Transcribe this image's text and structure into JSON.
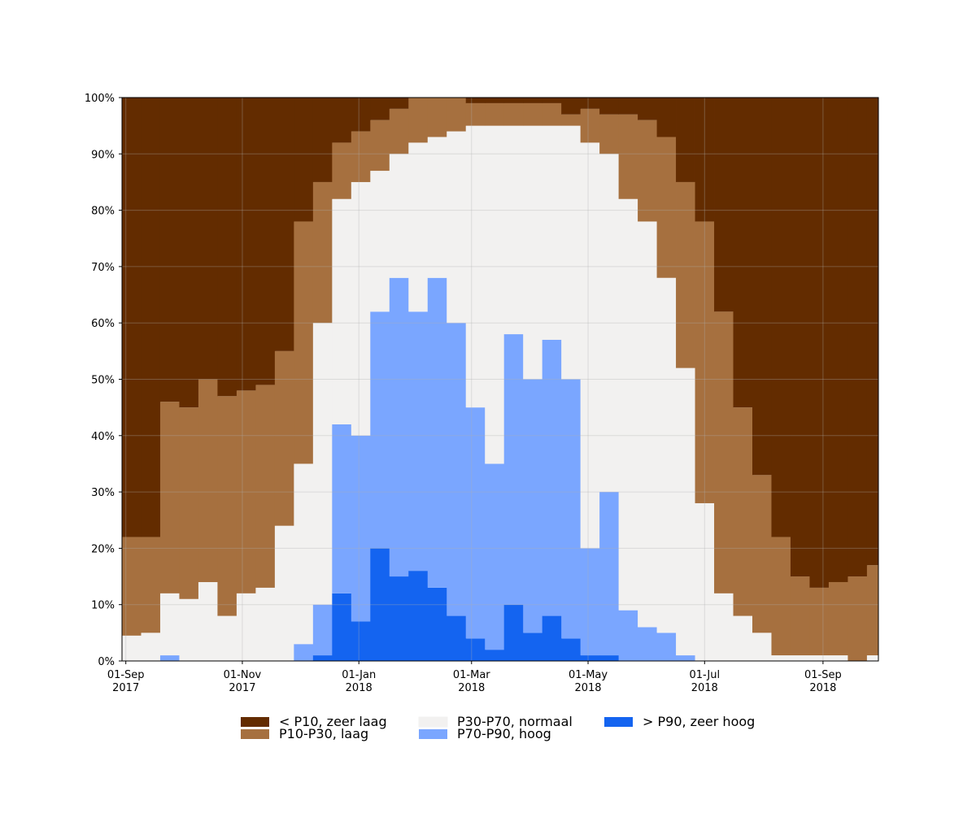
{
  "chart_data": {
    "type": "stacked-area",
    "x": [
      "2017-08-30",
      "2017-09-09",
      "2017-09-19",
      "2017-09-29",
      "2017-10-09",
      "2017-10-19",
      "2017-10-29",
      "2017-11-08",
      "2017-11-18",
      "2017-11-28",
      "2017-12-08",
      "2017-12-18",
      "2017-12-28",
      "2018-01-07",
      "2018-01-17",
      "2018-01-27",
      "2018-02-06",
      "2018-02-16",
      "2018-02-26",
      "2018-03-08",
      "2018-03-18",
      "2018-03-28",
      "2018-04-07",
      "2018-04-17",
      "2018-04-27",
      "2018-05-07",
      "2018-05-17",
      "2018-05-27",
      "2018-06-06",
      "2018-06-16",
      "2018-06-26",
      "2018-07-06",
      "2018-07-16",
      "2018-07-26",
      "2018-08-05",
      "2018-08-15",
      "2018-08-25",
      "2018-09-04",
      "2018-09-14",
      "2018-09-24"
    ],
    "series": [
      {
        "name": "< P10, zeer laag",
        "color": "#632c00",
        "values": [
          78,
          78,
          54,
          55,
          50,
          53,
          52,
          51,
          45,
          22,
          15,
          8,
          6,
          4,
          2,
          0,
          0,
          0,
          1,
          1,
          1,
          1,
          1,
          3,
          2,
          3,
          3,
          4,
          7,
          15,
          22,
          38,
          55,
          67,
          78,
          85,
          87,
          86,
          85,
          83
        ]
      },
      {
        "name": "P10-P30, laag",
        "color": "#a6703f",
        "values": [
          17.5,
          17,
          34,
          34,
          36,
          39,
          36,
          36,
          31,
          43,
          25,
          10,
          9,
          9,
          8,
          8,
          7,
          6,
          4,
          4,
          4,
          4,
          4,
          2,
          6,
          7,
          15,
          18,
          25,
          33,
          50,
          50,
          37,
          28,
          21,
          14,
          12,
          13,
          15,
          16
        ]
      },
      {
        "name": "P30-P70, normaal",
        "color": "#f2f1f0",
        "values": [
          4.5,
          5,
          11,
          11,
          14,
          8,
          12,
          13,
          24,
          32,
          50,
          40,
          45,
          25,
          22,
          30,
          25,
          34,
          50,
          60,
          37,
          45,
          38,
          45,
          72,
          60,
          73,
          72,
          63,
          51,
          28,
          12,
          8,
          5,
          1,
          1,
          1,
          1,
          0,
          1
        ]
      },
      {
        "name": "P70-P90, hoog",
        "color": "#7aa6ff",
        "values": [
          0,
          0,
          1,
          0,
          0,
          0,
          0,
          0,
          0,
          3,
          9,
          30,
          33,
          42,
          53,
          46,
          55,
          52,
          41,
          33,
          48,
          45,
          49,
          46,
          19,
          29,
          9,
          6,
          5,
          1,
          0,
          0,
          0,
          0,
          0,
          0,
          0,
          0,
          0,
          0
        ]
      },
      {
        "name": "> P90, zeer hoog",
        "color": "#1464f0",
        "values": [
          0,
          0,
          0,
          0,
          0,
          0,
          0,
          0,
          0,
          0,
          1,
          12,
          7,
          20,
          15,
          16,
          13,
          8,
          4,
          2,
          10,
          5,
          8,
          4,
          1,
          1,
          0,
          0,
          0,
          0,
          0,
          0,
          0,
          0,
          0,
          0,
          0,
          0,
          0,
          0
        ]
      }
    ],
    "xlim": [
      "2017-08-30",
      "2018-09-30"
    ],
    "xticks": [
      {
        "value": "2017-09-01",
        "label": "01-Sep\n2017"
      },
      {
        "value": "2017-11-01",
        "label": "01-Nov\n2017"
      },
      {
        "value": "2018-01-01",
        "label": "01-Jan\n2018"
      },
      {
        "value": "2018-03-01",
        "label": "01-Mar\n2018"
      },
      {
        "value": "2018-05-01",
        "label": "01-May\n2018"
      },
      {
        "value": "2018-07-01",
        "label": "01-Jul\n2018"
      },
      {
        "value": "2018-09-01",
        "label": "01-Sep\n2018"
      }
    ],
    "ylim": [
      0,
      100
    ],
    "yticks": [
      {
        "value": 0,
        "label": "0%"
      },
      {
        "value": 10,
        "label": "10%"
      },
      {
        "value": 20,
        "label": "20%"
      },
      {
        "value": 30,
        "label": "30%"
      },
      {
        "value": 40,
        "label": "40%"
      },
      {
        "value": 50,
        "label": "50%"
      },
      {
        "value": 60,
        "label": "60%"
      },
      {
        "value": 70,
        "label": "70%"
      },
      {
        "value": 80,
        "label": "80%"
      },
      {
        "value": 90,
        "label": "90%"
      },
      {
        "value": 100,
        "label": "100%"
      }
    ],
    "grid": true,
    "legend": "bottom"
  }
}
